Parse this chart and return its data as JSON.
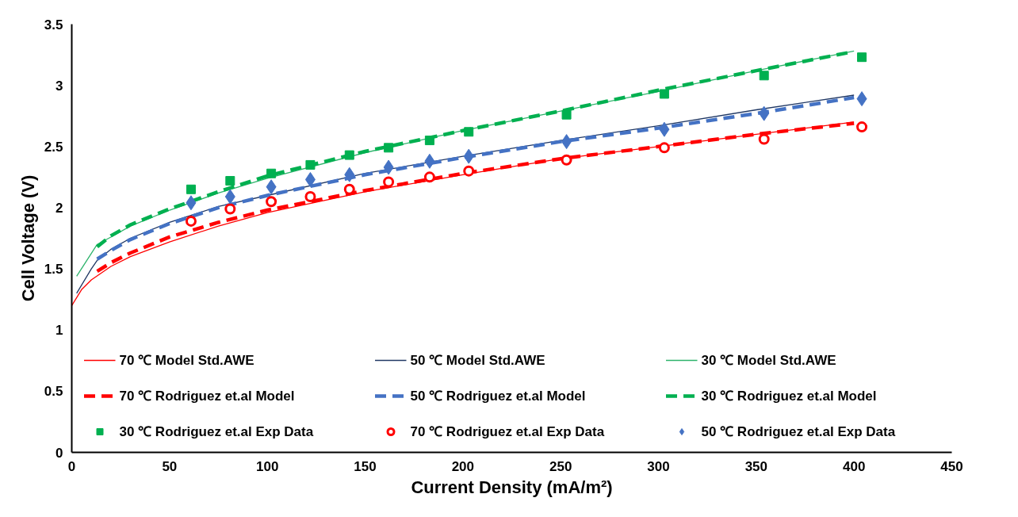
{
  "chart_data": {
    "type": "line",
    "xlabel": "Current Density (mA/m²)",
    "ylabel": "Cell Voltage (V)",
    "xlim": [
      0,
      450
    ],
    "ylim": [
      0,
      3.5
    ],
    "xticks": [
      0,
      50,
      100,
      150,
      200,
      250,
      300,
      350,
      400,
      450
    ],
    "yticks": [
      0,
      0.5,
      1,
      1.5,
      2,
      2.5,
      3,
      3.5
    ],
    "grid": false,
    "legend": "bottom",
    "series": [
      {
        "name": "70 ℃ Model Std.AWE",
        "type": "line",
        "line_style": "solid",
        "color": "#ff0000",
        "x": [
          0,
          5,
          10,
          20,
          30,
          50,
          75,
          100,
          150,
          200,
          250,
          300,
          350,
          400
        ],
        "values": [
          1.2,
          1.33,
          1.41,
          1.52,
          1.6,
          1.72,
          1.85,
          1.96,
          2.13,
          2.27,
          2.4,
          2.5,
          2.6,
          2.7
        ]
      },
      {
        "name": "50 ℃ Model Std.AWE",
        "type": "line",
        "line_style": "solid",
        "color": "#203864",
        "x": [
          2.5,
          10,
          13,
          20,
          30,
          50,
          75,
          100,
          150,
          200,
          250,
          300,
          350,
          400
        ],
        "values": [
          1.3,
          1.5,
          1.57,
          1.66,
          1.75,
          1.88,
          2.01,
          2.1,
          2.28,
          2.42,
          2.55,
          2.67,
          2.8,
          2.92
        ]
      },
      {
        "name": "30 ℃ Model Std.AWE",
        "type": "line",
        "line_style": "solid",
        "color": "#2db36b",
        "x": [
          2.5,
          13,
          20,
          30,
          50,
          75,
          100,
          150,
          200,
          250,
          300,
          350,
          400
        ],
        "values": [
          1.44,
          1.7,
          1.76,
          1.85,
          1.98,
          2.12,
          2.24,
          2.45,
          2.63,
          2.79,
          2.95,
          3.12,
          3.28
        ]
      },
      {
        "name": "70 ℃ Rodriguez et.al Model",
        "type": "line",
        "line_style": "dashed",
        "color": "#ff0000",
        "x": [
          13,
          20,
          30,
          50,
          75,
          100,
          150,
          200,
          250,
          300,
          350,
          400
        ],
        "values": [
          1.48,
          1.55,
          1.63,
          1.76,
          1.88,
          1.98,
          2.14,
          2.28,
          2.4,
          2.5,
          2.6,
          2.69
        ]
      },
      {
        "name": "50 ℃ Rodriguez et.al Model",
        "type": "line",
        "line_style": "dashed",
        "color": "#4472c4",
        "x": [
          13,
          20,
          30,
          50,
          75,
          100,
          150,
          200,
          250,
          300,
          350,
          400
        ],
        "values": [
          1.58,
          1.65,
          1.74,
          1.87,
          2.0,
          2.1,
          2.27,
          2.41,
          2.54,
          2.65,
          2.77,
          2.9
        ]
      },
      {
        "name": "30 ℃ Rodriguez et.al Model",
        "type": "line",
        "line_style": "dashed",
        "color": "#00b050",
        "x": [
          13,
          20,
          30,
          50,
          75,
          100,
          150,
          200,
          250,
          300,
          350,
          398
        ],
        "values": [
          1.68,
          1.77,
          1.86,
          1.99,
          2.13,
          2.26,
          2.46,
          2.63,
          2.79,
          2.96,
          3.12,
          3.27
        ]
      },
      {
        "name": "30 ℃ Rodriguez et.al Exp Data",
        "type": "scatter",
        "marker": "square",
        "color": "#00b050",
        "x": [
          61,
          81,
          102,
          122,
          142,
          162,
          183,
          203,
          253,
          303,
          354,
          404
        ],
        "values": [
          2.15,
          2.22,
          2.28,
          2.35,
          2.43,
          2.49,
          2.55,
          2.62,
          2.76,
          2.93,
          3.08,
          3.23
        ]
      },
      {
        "name": "70 ℃ Rodriguez et.al Exp Data",
        "type": "scatter",
        "marker": "circle",
        "color": "#ff0000",
        "x": [
          61,
          81,
          102,
          122,
          142,
          162,
          183,
          203,
          253,
          303,
          354,
          404
        ],
        "values": [
          1.89,
          1.99,
          2.05,
          2.09,
          2.15,
          2.21,
          2.25,
          2.3,
          2.39,
          2.49,
          2.56,
          2.66
        ]
      },
      {
        "name": "50 ℃ Rodriguez et.al Exp Data",
        "type": "scatter",
        "marker": "diamond",
        "color": "#4472c4",
        "x": [
          61,
          81,
          102,
          122,
          142,
          162,
          183,
          203,
          253,
          303,
          354,
          404
        ],
        "values": [
          2.04,
          2.09,
          2.17,
          2.23,
          2.27,
          2.33,
          2.38,
          2.42,
          2.54,
          2.64,
          2.77,
          2.89
        ]
      }
    ]
  }
}
